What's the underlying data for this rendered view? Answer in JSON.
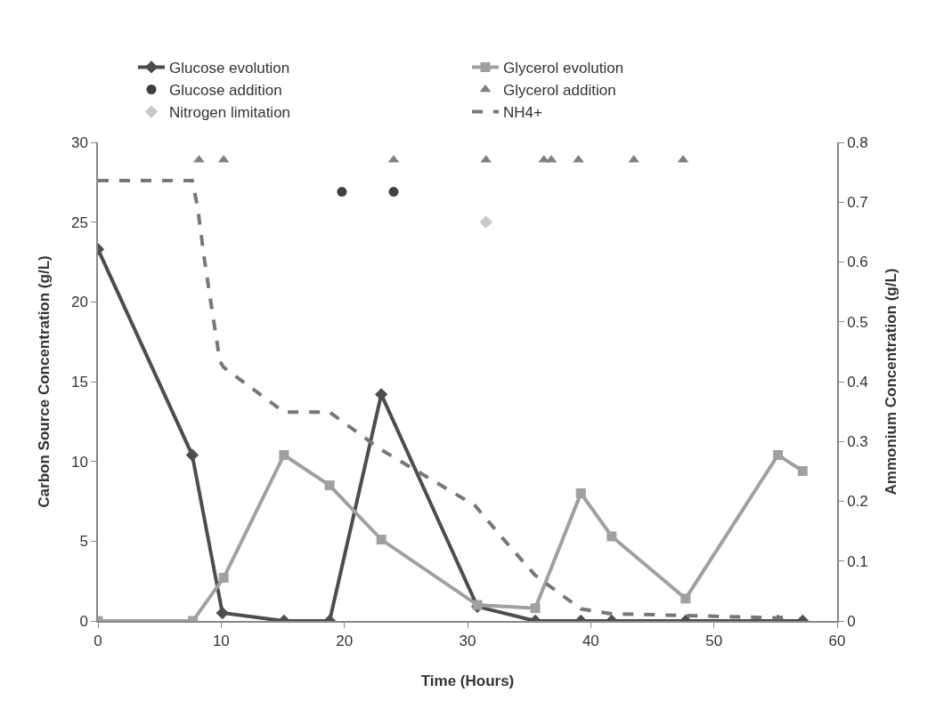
{
  "chart_data": {
    "type": "line",
    "xlabel": "Time (Hours)",
    "ylabel": "Carbon Source Concentration (g/L)",
    "y2label": "Ammonium Concentration (g/L)",
    "xlim": [
      0,
      60
    ],
    "xticks": [
      0,
      10,
      20,
      30,
      40,
      50,
      60
    ],
    "ylim": [
      0,
      30
    ],
    "yticks": [
      0,
      5,
      10,
      15,
      20,
      25,
      30
    ],
    "y2lim": [
      0,
      0.8
    ],
    "y2ticks": [
      0,
      0.1,
      0.2,
      0.3,
      0.4,
      0.5,
      0.6,
      0.7,
      0.8
    ],
    "legend": "top",
    "series": [
      {
        "name": "Glucose evolution",
        "marker": "diamond",
        "line_style": "solid",
        "color": "#4d4d4d",
        "x": [
          0,
          7.65,
          10.1,
          15.1,
          18.8,
          23.0,
          30.8,
          35.5,
          39.2,
          41.7,
          47.7,
          55.2,
          57.2
        ],
        "values": [
          23.3,
          10.4,
          0.5,
          0,
          0,
          14.2,
          0.9,
          0,
          0,
          0,
          0,
          0,
          0
        ]
      },
      {
        "name": "Glycerol evolution",
        "marker": "square",
        "line_style": "solid",
        "color": "#a0a0a0",
        "x": [
          0,
          7.7,
          10.2,
          15.1,
          18.8,
          23.0,
          30.8,
          35.5,
          39.2,
          41.7,
          47.7,
          55.2,
          57.2
        ],
        "values": [
          0,
          0,
          2.7,
          10.4,
          8.5,
          5.1,
          1.0,
          0.8,
          8.0,
          5.3,
          1.4,
          10.4,
          9.4
        ]
      },
      {
        "name": "Glucose addition",
        "type": "scatter",
        "marker": "circle",
        "color": "#404040",
        "x": [
          19.8,
          24.0
        ],
        "values": [
          26.9,
          26.9
        ]
      },
      {
        "name": "Glycerol addition",
        "type": "scatter",
        "marker": "triangle",
        "color": "#808080",
        "x": [
          8.2,
          10.2,
          24.0,
          31.5,
          36.2,
          36.8,
          39.0,
          43.5,
          47.5
        ],
        "values": [
          28.9,
          28.9,
          28.9,
          28.9,
          28.9,
          28.9,
          28.9,
          28.9,
          28.9
        ]
      },
      {
        "name": "Nitrogen limitation",
        "type": "scatter",
        "marker": "diamond",
        "color": "#c8c8c8",
        "x": [
          31.5
        ],
        "values": [
          25
        ]
      },
      {
        "name": "NH4+",
        "marker": "none",
        "line_style": "dashed",
        "axis": "y2",
        "color": "#777777",
        "x": [
          0,
          7.65,
          8.1,
          8.6,
          9.3,
          9.9,
          10.2,
          15.1,
          18.8,
          23.0,
          30.6,
          32.9,
          35.5,
          39.2,
          41.7,
          47.7,
          55.2,
          56.2
        ],
        "values": [
          0.736,
          0.736,
          0.69,
          0.61,
          0.514,
          0.434,
          0.424,
          0.349,
          0.349,
          0.286,
          0.193,
          0.137,
          0.076,
          0.02,
          0.012,
          0.009,
          0.005,
          0.008
        ]
      }
    ]
  }
}
